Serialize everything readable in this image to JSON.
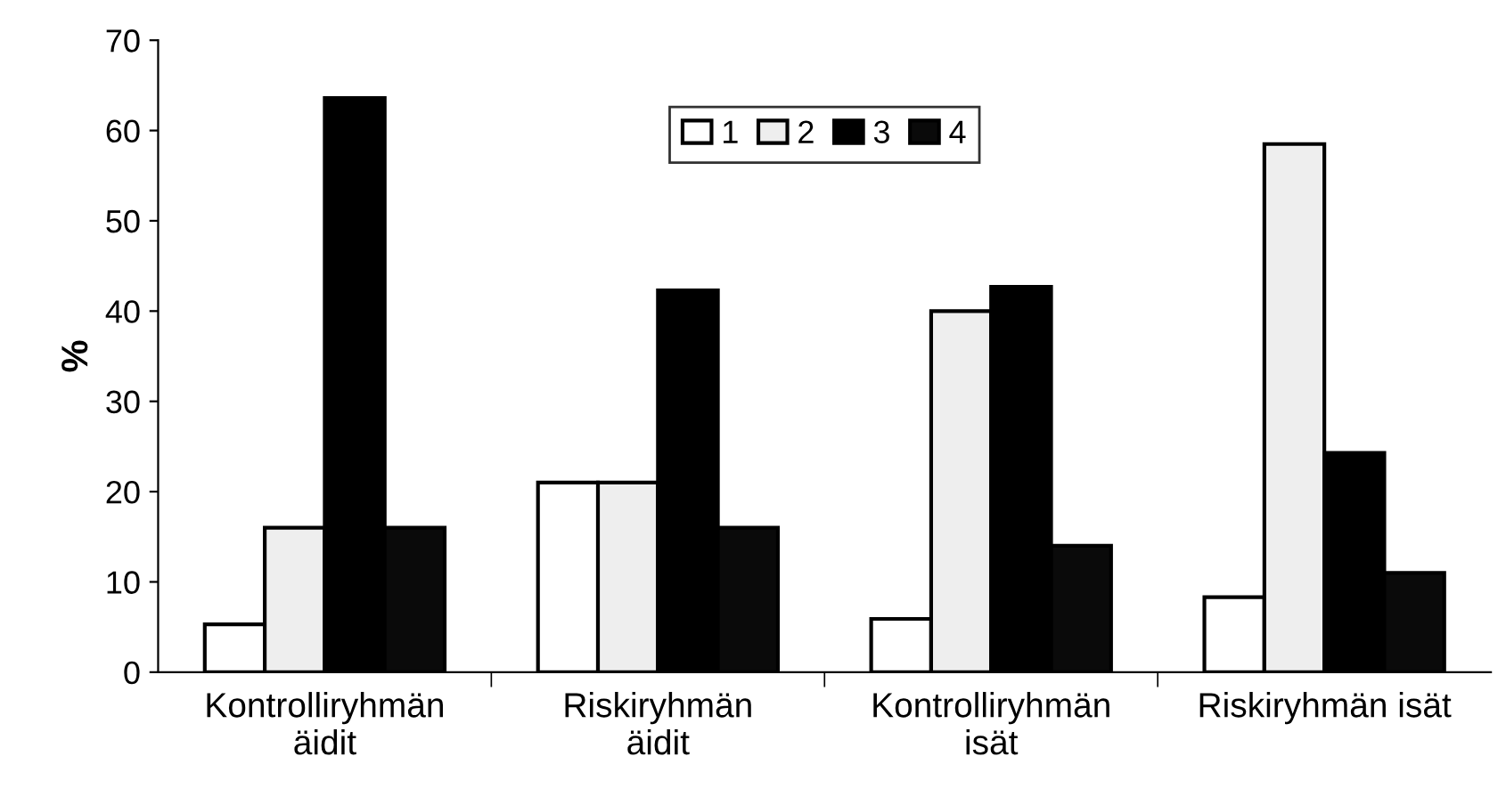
{
  "chart_data": {
    "type": "bar",
    "ylabel": "%",
    "categories": [
      "Kontrolliryhmän\näidit",
      "Riskiryhmän\näidit",
      "Kontrolliryhmän\nisät",
      "Riskiryhmän isät"
    ],
    "series": [
      {
        "name": "1",
        "color": "#ffffff",
        "values": [
          5.3,
          21,
          5.9,
          8.3
        ]
      },
      {
        "name": "2",
        "color": "#eeeeee",
        "values": [
          16,
          21,
          40,
          58.5
        ]
      },
      {
        "name": "3",
        "color": "#000000",
        "values": [
          63.6,
          42.3,
          42.7,
          24.3
        ]
      },
      {
        "name": "4",
        "color": "#0a0a0a",
        "values": [
          16,
          16,
          14,
          11
        ]
      }
    ],
    "ylim": [
      0,
      70
    ],
    "yticks": [
      0,
      10,
      20,
      30,
      40,
      50,
      60,
      70
    ],
    "grid": false,
    "legend": "top"
  }
}
